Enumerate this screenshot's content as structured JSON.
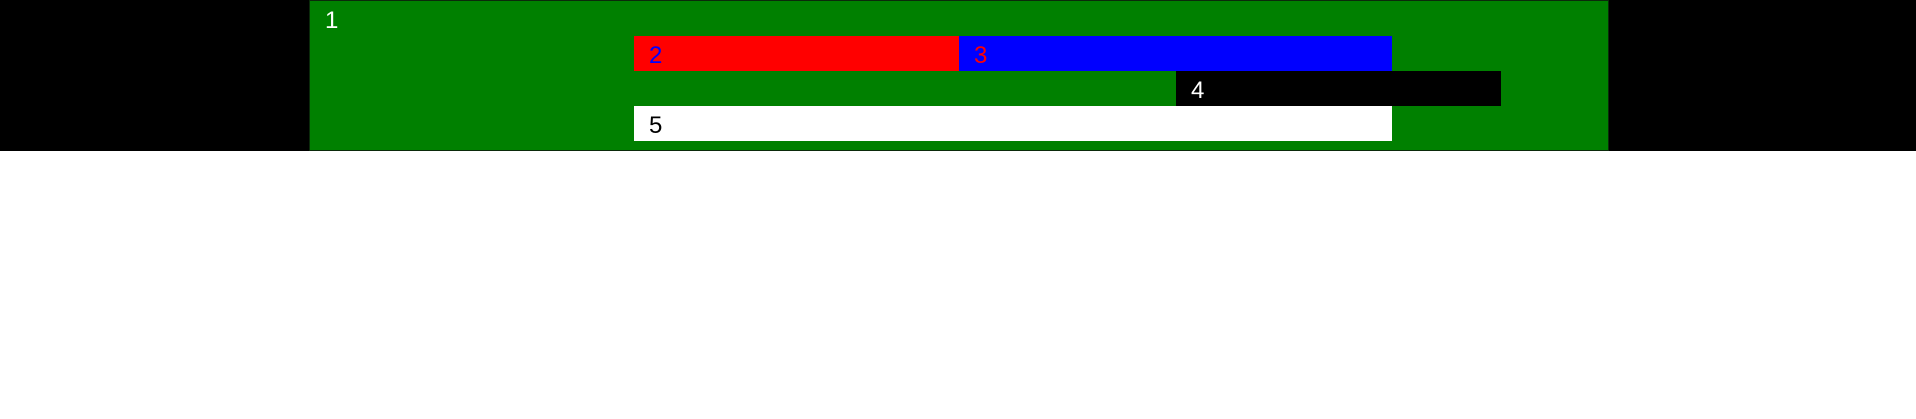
{
  "boxes": [
    {
      "label": "1",
      "background": "#008000",
      "text_color": "#ffffff"
    },
    {
      "label": "2",
      "background": "#ff0000",
      "text_color": "#0000ff"
    },
    {
      "label": "3",
      "background": "#0000ff",
      "text_color": "#ff0000"
    },
    {
      "label": "4",
      "background": "#000000",
      "text_color": "#ffffff"
    },
    {
      "label": "5",
      "background": "#ffffff",
      "text_color": "#000000"
    }
  ],
  "background_band_color": "#000000",
  "page_background_color": "#ffffff"
}
